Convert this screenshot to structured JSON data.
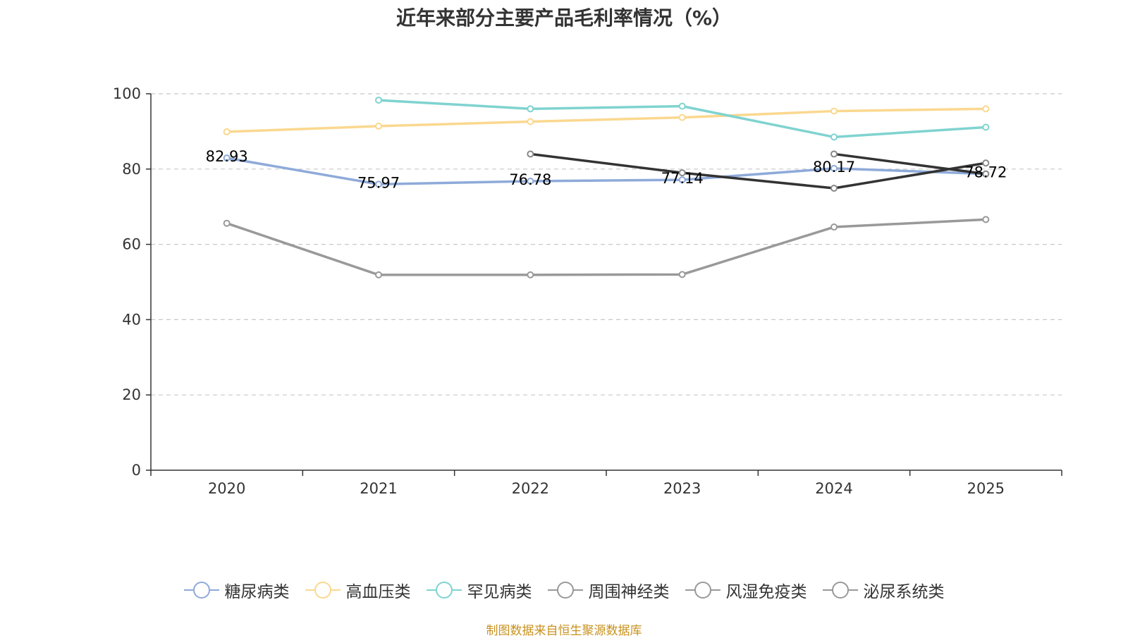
{
  "chart_data": {
    "type": "line",
    "title": "近年来部分主要产品毛利率情况（%）",
    "xlabel": "",
    "ylabel": "",
    "ylim": [
      0,
      100
    ],
    "yticks": [
      "0",
      "20",
      "40",
      "60",
      "80",
      "100"
    ],
    "categories": [
      "2020",
      "2021",
      "2022",
      "2023",
      "2024",
      "2025"
    ],
    "grid": true,
    "legend_position": "bottom",
    "series": [
      {
        "name": "糖尿病类",
        "color": "#8eaad9",
        "values": [
          82.93,
          75.97,
          76.78,
          77.14,
          80.17,
          78.72
        ],
        "labels": [
          "82.93",
          "75.97",
          "76.78",
          "77.14",
          "80.17",
          "78.72"
        ]
      },
      {
        "name": "高血压类",
        "color": "#fad88f",
        "values": [
          89.9,
          91.4,
          92.6,
          93.7,
          95.4,
          96.0
        ]
      },
      {
        "name": "罕见病类",
        "color": "#7fd3d0",
        "values": [
          null,
          98.3,
          96.0,
          96.7,
          88.5,
          91.1
        ]
      },
      {
        "name": "周围神经类",
        "color": "#333333",
        "values": [
          null,
          null,
          84.0,
          79.0,
          74.9,
          81.6
        ]
      },
      {
        "name": "风湿免疫类",
        "color": "#333333",
        "values": [
          null,
          null,
          null,
          null,
          84.0,
          78.7
        ]
      },
      {
        "name": "泌尿系统类",
        "color": "#999999",
        "values": [
          65.6,
          51.9,
          51.9,
          52.0,
          64.6,
          66.6
        ]
      }
    ]
  },
  "legend": {
    "items": [
      {
        "label": "糖尿病类",
        "color": "#8eaad9"
      },
      {
        "label": "高血压类",
        "color": "#fad88f"
      },
      {
        "label": "罕见病类",
        "color": "#7fd3d0"
      },
      {
        "label": "周围神经类",
        "color": "#999999"
      },
      {
        "label": "风湿免疫类",
        "color": "#999999"
      },
      {
        "label": "泌尿系统类",
        "color": "#999999"
      }
    ]
  },
  "source": "制图数据来自恒生聚源数据库"
}
